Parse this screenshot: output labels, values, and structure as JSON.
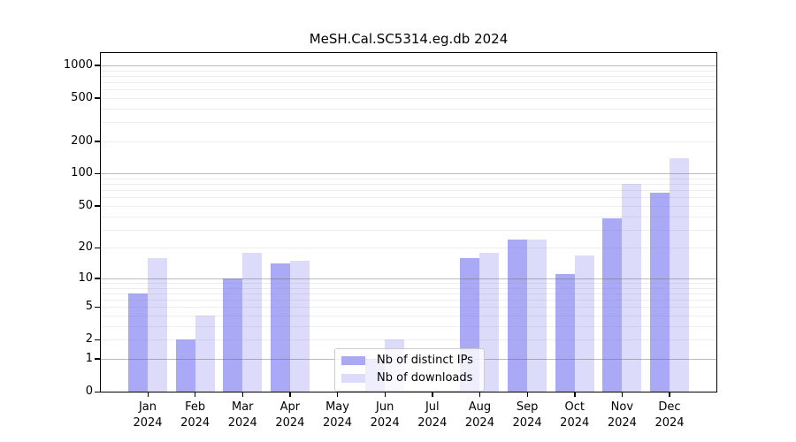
{
  "chart_data": {
    "type": "bar",
    "title": "MeSH.Cal.SC5314.eg.db 2024",
    "year": "2024",
    "categories": [
      "Jan",
      "Feb",
      "Mar",
      "Apr",
      "May",
      "Jun",
      "Jul",
      "Aug",
      "Sep",
      "Oct",
      "Nov",
      "Dec"
    ],
    "series": [
      {
        "name": "Nb of distinct IPs",
        "color": "#a9a9f5",
        "values": [
          7,
          2,
          10,
          14,
          0,
          1,
          0,
          16,
          24,
          11,
          38,
          66
        ]
      },
      {
        "name": "Nb of downloads",
        "color": "#dcdcfa",
        "values": [
          16,
          4,
          18,
          15,
          0,
          2,
          0,
          18,
          24,
          17,
          80,
          140
        ]
      }
    ],
    "yscale": "log10(value+1)",
    "yticks": [
      1000,
      500,
      200,
      100,
      50,
      20,
      10,
      5,
      2,
      1,
      0
    ],
    "ylim": [
      0,
      1253
    ],
    "xlabel": "",
    "ylabel": "",
    "grid": "horizontal; major lines at 1,10,100,1000; faint minor lines at 2-9 per decade; drawn over bars",
    "legend_position": "lower center"
  }
}
